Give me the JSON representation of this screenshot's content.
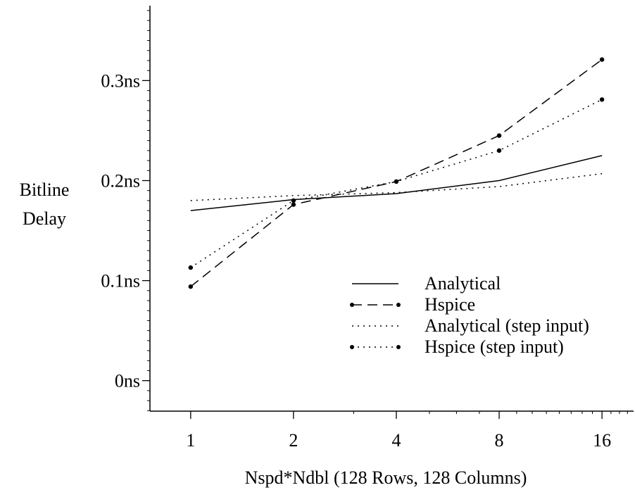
{
  "chart_data": {
    "type": "line",
    "xlabel": "Nspd*Ndbl (128 Rows, 128 Columns)",
    "ylabel_lines": [
      "Bitline",
      "Delay"
    ],
    "x_scale": "log2",
    "xlim": [
      0.76,
      19.8
    ],
    "ylim": [
      -0.0305,
      0.3749
    ],
    "x_ticks": [
      1,
      2,
      4,
      8,
      16
    ],
    "x_tick_labels": [
      "1",
      "2",
      "4",
      "8",
      "16"
    ],
    "y_ticks": [
      0,
      0.1,
      0.2,
      0.3
    ],
    "y_tick_labels": [
      "0ns",
      "0.1ns",
      "0.2ns",
      "0.3ns"
    ],
    "grid": false,
    "legend_position": "lower-right",
    "x": [
      1,
      2,
      4,
      8,
      16
    ],
    "series": [
      {
        "name": "Analytical",
        "style": "solid",
        "markers": false,
        "values": [
          0.17,
          0.181,
          0.187,
          0.2,
          0.225
        ]
      },
      {
        "name": "Hspice",
        "style": "dashed",
        "markers": true,
        "values": [
          0.094,
          0.176,
          0.199,
          0.245,
          0.321
        ]
      },
      {
        "name": "Analytical (step input)",
        "style": "dotted",
        "markers": false,
        "values": [
          0.18,
          0.185,
          0.188,
          0.194,
          0.207
        ]
      },
      {
        "name": "Hspice (step input)",
        "style": "dotted",
        "markers": true,
        "values": [
          0.113,
          0.18,
          0.199,
          0.23,
          0.281
        ]
      }
    ]
  }
}
